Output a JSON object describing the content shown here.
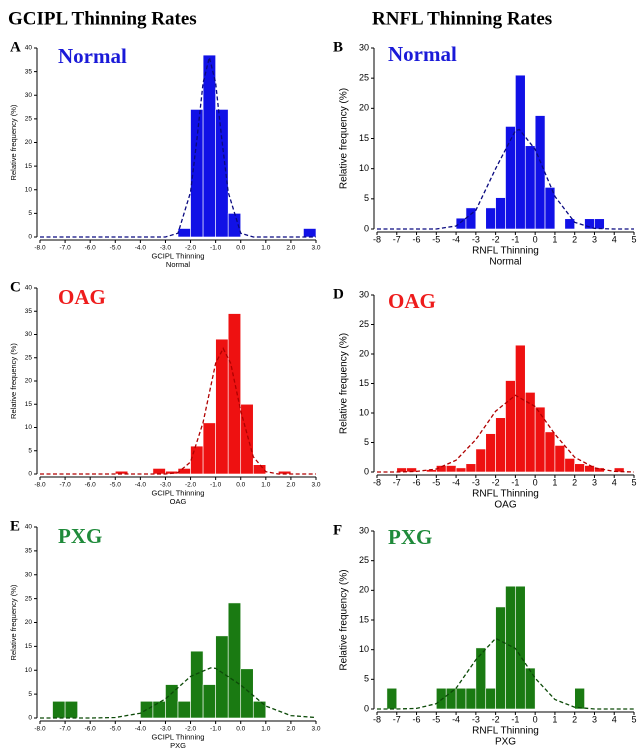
{
  "column_titles": [
    "GCIPL Thinning Rates",
    "RNFL Thinning Rates"
  ],
  "chart_data": [
    {
      "type": "histogram",
      "panel": "A",
      "label": "Normal",
      "label_color": "#1a1ad8",
      "ylabel": "Relative frequency (%)",
      "xlabel": "GCIPL Thinning",
      "xlabel_sub": "Normal",
      "color": "#1111e6",
      "bins": [
        -2.5,
        -2,
        -1.5,
        -1,
        -0.5,
        0,
        0.5,
        1,
        1.5,
        2,
        2.5,
        3
      ],
      "values": [
        1.8,
        27,
        38.5,
        27,
        5,
        0,
        0,
        0,
        0,
        0,
        1.8
      ],
      "fit": {
        "color": "#0a0a80",
        "x": [
          -8,
          -3,
          -2.5,
          -2,
          -1.75,
          -1.5,
          -1.25,
          -1,
          -0.75,
          -0.5,
          0,
          0.5,
          3
        ],
        "values": [
          0,
          0,
          0.8,
          9.5,
          20.5,
          32.6,
          38,
          32.6,
          20.5,
          9.5,
          0.8,
          0,
          0
        ]
      },
      "xlim": [
        -8,
        3
      ],
      "ylim": [
        0,
        40
      ],
      "xticks": [
        {
          "value": -8,
          "label": "-8.0"
        },
        {
          "value": -7,
          "label": "-7.0"
        },
        {
          "value": -6,
          "label": "-6.0"
        },
        {
          "value": -5,
          "label": "-5.0"
        },
        {
          "value": -4,
          "label": "-4.0"
        },
        {
          "value": -3,
          "label": "-3.0"
        },
        {
          "value": -2,
          "label": "-2.0"
        },
        {
          "value": -1,
          "label": "-1.0"
        },
        {
          "value": 0,
          "label": "0.0"
        },
        {
          "value": 1,
          "label": "1.0"
        },
        {
          "value": 2,
          "label": "2.0"
        },
        {
          "value": 3,
          "label": "3.0"
        }
      ],
      "yticks": [
        0,
        5,
        10,
        15,
        20,
        25,
        30,
        35,
        40
      ]
    },
    {
      "type": "histogram",
      "panel": "B",
      "label": "Normal",
      "label_color": "#1a1ad8",
      "ylabel": "Relative frequency (%)",
      "xlabel": "RNFL Thinning",
      "xlabel_sub": "Normal",
      "color": "#1111e6",
      "bins": [
        -4,
        -3.5,
        -3,
        -2.5,
        -2,
        -1.5,
        -1,
        -0.5,
        0,
        0.5,
        1,
        1.5,
        2,
        2.5,
        3,
        3.5
      ],
      "values": [
        1.8,
        3.5,
        0,
        3.5,
        5.2,
        17,
        25.5,
        13.8,
        18.8,
        6.9,
        0,
        1.7,
        0,
        1.7,
        1.7
      ],
      "fit": {
        "color": "#0a0a80",
        "x": [
          -8,
          -7,
          -6,
          -5,
          -4,
          -3,
          -2,
          -1,
          -0.8,
          0,
          1,
          2,
          3,
          4,
          5
        ],
        "values": [
          0,
          0,
          0,
          0,
          0.5,
          3.1,
          10,
          16.3,
          16.5,
          13.2,
          5.4,
          1.1,
          0.1,
          0,
          0
        ]
      },
      "xlim": [
        -8,
        5
      ],
      "ylim": [
        0,
        30
      ],
      "xticks": [
        -8,
        -7,
        -6,
        -5,
        -4,
        -3,
        -2,
        -1,
        0,
        1,
        2,
        3,
        4,
        5
      ],
      "yticks": [
        0,
        5,
        10,
        15,
        20,
        25,
        30
      ]
    },
    {
      "type": "histogram",
      "panel": "C",
      "label": "OAG",
      "label_color": "#ee1c1c",
      "ylabel": "Relative frequency (%)",
      "xlabel": "GCIPL Thinning",
      "xlabel_sub": "OAG",
      "color": "#ee1111",
      "bins": [
        -5,
        -4.5,
        -4,
        -3.5,
        -3,
        -2.5,
        -2,
        -1.5,
        -1,
        -0.5,
        0,
        0.5,
        1,
        1.5,
        2
      ],
      "values": [
        0.6,
        0,
        0,
        1.2,
        0.6,
        1.2,
        6,
        11,
        29,
        34.5,
        15,
        2,
        0,
        0.6
      ],
      "fit": {
        "color": "#b00000",
        "x": [
          -8,
          -3,
          -2.5,
          -2,
          -1.5,
          -1,
          -0.7,
          -0.4,
          0,
          0.5,
          1,
          1.5,
          3
        ],
        "values": [
          0,
          0,
          0.3,
          2.6,
          11.1,
          23.8,
          27,
          23.8,
          13.6,
          3.7,
          0.5,
          0,
          0
        ]
      },
      "xlim": [
        -8,
        3
      ],
      "ylim": [
        0,
        40
      ],
      "xticks": [
        {
          "value": -8,
          "label": "-8.0"
        },
        {
          "value": -7,
          "label": "-7.0"
        },
        {
          "value": -6,
          "label": "-6.0"
        },
        {
          "value": -5,
          "label": "-5.0"
        },
        {
          "value": -4,
          "label": "-4.0"
        },
        {
          "value": -3,
          "label": "-3.0"
        },
        {
          "value": -2,
          "label": "-2.0"
        },
        {
          "value": -1,
          "label": "-1.0"
        },
        {
          "value": 0,
          "label": "0.0"
        },
        {
          "value": 1,
          "label": "1.0"
        },
        {
          "value": 2,
          "label": "2.0"
        },
        {
          "value": 3,
          "label": "3.0"
        }
      ],
      "yticks": [
        0,
        5,
        10,
        15,
        20,
        25,
        30,
        35,
        40
      ]
    },
    {
      "type": "histogram",
      "panel": "D",
      "label": "OAG",
      "label_color": "#ee1c1c",
      "ylabel": "Relative frequency (%)",
      "xlabel": "RNFL Thinning",
      "xlabel_sub": "OAG",
      "color": "#ee1111",
      "bins": [
        -7,
        -6.5,
        -6,
        -5.5,
        -5,
        -4.5,
        -4,
        -3.5,
        -3,
        -2.5,
        -2,
        -1.5,
        -1,
        -0.5,
        0,
        0.5,
        1,
        1.5,
        2,
        2.5,
        3,
        3.5,
        4,
        4.5
      ],
      "values": [
        0.7,
        0.7,
        0,
        0.4,
        1.1,
        1.1,
        0.7,
        1.4,
        3.9,
        6.5,
        9.2,
        15.5,
        21.5,
        13.5,
        11,
        6.8,
        4.5,
        2.3,
        1.4,
        1.1,
        0.7,
        0,
        0.7
      ],
      "fit": {
        "color": "#b00000",
        "x": [
          -8,
          -7,
          -6,
          -5,
          -4,
          -3,
          -2,
          -1,
          0,
          1,
          2,
          3,
          4,
          5
        ],
        "values": [
          0,
          0,
          0.1,
          0.5,
          2,
          5.5,
          10.3,
          13,
          11.1,
          6.4,
          2.5,
          0.7,
          0.1,
          0
        ]
      },
      "xlim": [
        -8,
        5
      ],
      "ylim": [
        0,
        30
      ],
      "xticks": [
        -8,
        -7,
        -6,
        -5,
        -4,
        -3,
        -2,
        -1,
        0,
        1,
        2,
        3,
        4,
        5
      ],
      "yticks": [
        0,
        5,
        10,
        15,
        20,
        25,
        30
      ]
    },
    {
      "type": "histogram",
      "panel": "E",
      "label": "PXG",
      "label_color": "#1f8a3a",
      "ylabel": "Relative frequency (%)",
      "xlabel": "GCIPL Thinning",
      "xlabel_sub": "PXG",
      "color": "#1a7a12",
      "bins": [
        -7.5,
        -7,
        -6.5,
        -6,
        -5.5,
        -5,
        -4.5,
        -4,
        -3.5,
        -3,
        -2.5,
        -2,
        -1.5,
        -1,
        -0.5,
        0,
        0.5,
        1
      ],
      "values": [
        3.5,
        3.5,
        0,
        0,
        0,
        0,
        0,
        3.5,
        3.5,
        7,
        3.5,
        14,
        7,
        17.2,
        24.1,
        10.3,
        3.5
      ],
      "fit": {
        "color": "#0c4a08",
        "x": [
          -8,
          -7,
          -6,
          -5,
          -4,
          -3,
          -2,
          -1.2,
          -1,
          0,
          1,
          2,
          3
        ],
        "values": [
          0,
          0,
          0,
          0.1,
          1,
          4,
          8.7,
          10.5,
          10.4,
          6.9,
          2.5,
          0.5,
          0.1
        ]
      },
      "xlim": [
        -8,
        3
      ],
      "ylim": [
        0,
        40
      ],
      "xticks": [
        {
          "value": -8,
          "label": "-8.0"
        },
        {
          "value": -7,
          "label": "-7.0"
        },
        {
          "value": -6,
          "label": "-6.0"
        },
        {
          "value": -5,
          "label": "-5.0"
        },
        {
          "value": -4,
          "label": "-4.0"
        },
        {
          "value": -3,
          "label": "-3.0"
        },
        {
          "value": -2,
          "label": "-2.0"
        },
        {
          "value": -1,
          "label": "-1.0"
        },
        {
          "value": 0,
          "label": "0.0"
        },
        {
          "value": 1,
          "label": "1.0"
        },
        {
          "value": 2,
          "label": "2.0"
        },
        {
          "value": 3,
          "label": "3.0"
        }
      ],
      "yticks": [
        0,
        5,
        10,
        15,
        20,
        25,
        30,
        35,
        40
      ]
    },
    {
      "type": "histogram",
      "panel": "F",
      "label": "PXG",
      "label_color": "#1f8a3a",
      "ylabel": "Relative frequency (%)",
      "xlabel": "RNFL Thinning",
      "xlabel_sub": "PXG",
      "color": "#1a7a12",
      "bins": [
        -7.5,
        -7,
        -6.5,
        -6,
        -5.5,
        -5,
        -4.5,
        -4,
        -3.5,
        -3,
        -2.5,
        -2,
        -1.5,
        -1,
        -0.5,
        0,
        0.5,
        1,
        1.5,
        2,
        2.5
      ],
      "values": [
        3.5,
        0,
        0,
        0,
        0,
        3.5,
        3.5,
        3.5,
        3.5,
        10.3,
        3.5,
        17.2,
        20.7,
        20.7,
        6.9,
        0,
        0,
        0,
        0,
        3.5
      ],
      "fit": {
        "color": "#0c4a08",
        "x": [
          -8,
          -7,
          -6,
          -5,
          -4,
          -3,
          -2,
          -1,
          0,
          1,
          2,
          3,
          4,
          5
        ],
        "values": [
          0,
          0,
          0.1,
          0.9,
          3.5,
          8.3,
          11.9,
          10.2,
          5.2,
          1.6,
          0.3,
          0,
          0,
          0
        ]
      },
      "xlim": [
        -8,
        5
      ],
      "ylim": [
        0,
        30
      ],
      "xticks": [
        -8,
        -7,
        -6,
        -5,
        -4,
        -3,
        -2,
        -1,
        0,
        1,
        2,
        3,
        4,
        5
      ],
      "yticks": [
        0,
        5,
        10,
        15,
        20,
        25,
        30
      ]
    }
  ]
}
